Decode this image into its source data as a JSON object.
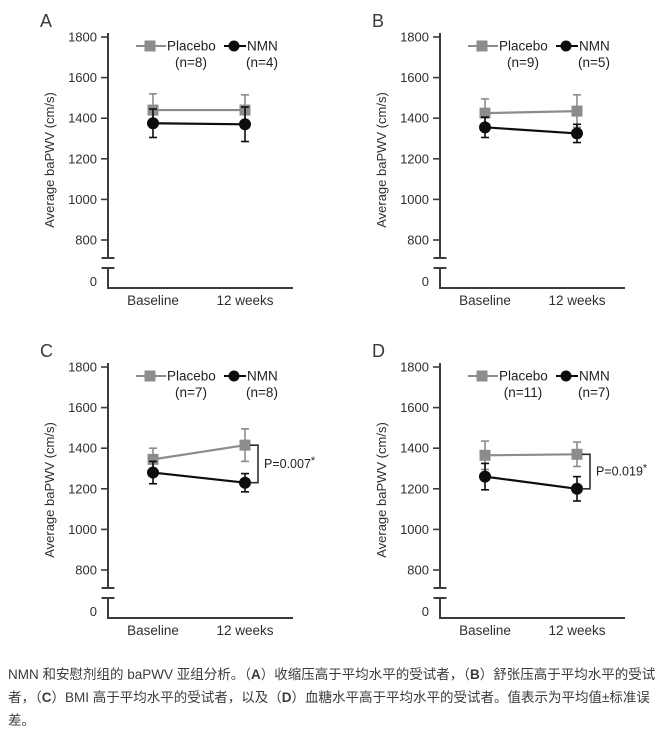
{
  "colors": {
    "placebo": "#8c8c8c",
    "nmn": "#0d0d0d",
    "axis": "#3c3c3c",
    "text": "#2f2f2f",
    "background": "#ffffff"
  },
  "chart_data": [
    {
      "panel": "A",
      "type": "line",
      "x_categories": [
        "Baseline",
        "12 weeks"
      ],
      "ylabel": "Average baPWV (cm/s)",
      "yticks": [
        1800,
        1600,
        1400,
        1200,
        1000,
        800
      ],
      "y_origin_label": "0",
      "axis_break": true,
      "ylim": [
        700,
        1800
      ],
      "legend_position": "top",
      "series": [
        {
          "name": "Placebo",
          "n_label": "(n=8)",
          "marker": "square",
          "color": "#8c8c8c",
          "values": [
            1440,
            1440
          ],
          "errors": [
            80,
            75
          ]
        },
        {
          "name": "NMN",
          "n_label": "(n=4)",
          "marker": "circle",
          "color": "#0d0d0d",
          "values": [
            1375,
            1370
          ],
          "errors": [
            70,
            85
          ]
        }
      ],
      "p_value": null
    },
    {
      "panel": "B",
      "type": "line",
      "x_categories": [
        "Baseline",
        "12 weeks"
      ],
      "ylabel": "Average baPWV (cm/s)",
      "yticks": [
        1800,
        1600,
        1400,
        1200,
        1000,
        800
      ],
      "y_origin_label": "0",
      "axis_break": true,
      "ylim": [
        700,
        1800
      ],
      "legend_position": "top",
      "series": [
        {
          "name": "Placebo",
          "n_label": "(n=9)",
          "marker": "square",
          "color": "#8c8c8c",
          "values": [
            1425,
            1435
          ],
          "errors": [
            70,
            80
          ]
        },
        {
          "name": "NMN",
          "n_label": "(n=5)",
          "marker": "circle",
          "color": "#0d0d0d",
          "values": [
            1355,
            1325
          ],
          "errors": [
            50,
            45
          ]
        }
      ],
      "p_value": null
    },
    {
      "panel": "C",
      "type": "line",
      "x_categories": [
        "Baseline",
        "12 weeks"
      ],
      "ylabel": "Average baPWV (cm/s)",
      "yticks": [
        1800,
        1600,
        1400,
        1200,
        1000,
        800
      ],
      "y_origin_label": "0",
      "axis_break": true,
      "ylim": [
        700,
        1800
      ],
      "legend_position": "top",
      "series": [
        {
          "name": "Placebo",
          "n_label": "(n=7)",
          "marker": "square",
          "color": "#8c8c8c",
          "values": [
            1345,
            1415
          ],
          "errors": [
            55,
            80
          ]
        },
        {
          "name": "NMN",
          "n_label": "(n=8)",
          "marker": "circle",
          "color": "#0d0d0d",
          "values": [
            1280,
            1230
          ],
          "errors": [
            55,
            45
          ]
        }
      ],
      "p_value": "P=0.007*"
    },
    {
      "panel": "D",
      "type": "line",
      "x_categories": [
        "Baseline",
        "12 weeks"
      ],
      "ylabel": "Average baPWV (cm/s)",
      "yticks": [
        1800,
        1600,
        1400,
        1200,
        1000,
        800
      ],
      "y_origin_label": "0",
      "axis_break": true,
      "ylim": [
        700,
        1800
      ],
      "legend_position": "top",
      "series": [
        {
          "name": "Placebo",
          "n_label": "(n=11)",
          "marker": "square",
          "color": "#8c8c8c",
          "values": [
            1365,
            1370
          ],
          "errors": [
            70,
            60
          ]
        },
        {
          "name": "NMN",
          "n_label": "(n=7)",
          "marker": "circle",
          "color": "#0d0d0d",
          "values": [
            1260,
            1200
          ],
          "errors": [
            65,
            60
          ]
        }
      ],
      "p_value": "P=0.019*"
    }
  ],
  "caption": {
    "segments": [
      {
        "t": "NMN 和安慰剂组的 baPWV 亚组分析。（",
        "b": false
      },
      {
        "t": "A",
        "b": true
      },
      {
        "t": "）收缩压高于平均水平的受试者，（",
        "b": false
      },
      {
        "t": "B",
        "b": true
      },
      {
        "t": "）舒张压高于平均水平的受试者，（",
        "b": false
      },
      {
        "t": "C",
        "b": true
      },
      {
        "t": "）BMI 高于平均水平的受试者，以及（",
        "b": false
      },
      {
        "t": "D",
        "b": true
      },
      {
        "t": "）血糖水平高于平均水平的受试者。值表示为平均值±标准误差。",
        "b": false
      }
    ]
  }
}
